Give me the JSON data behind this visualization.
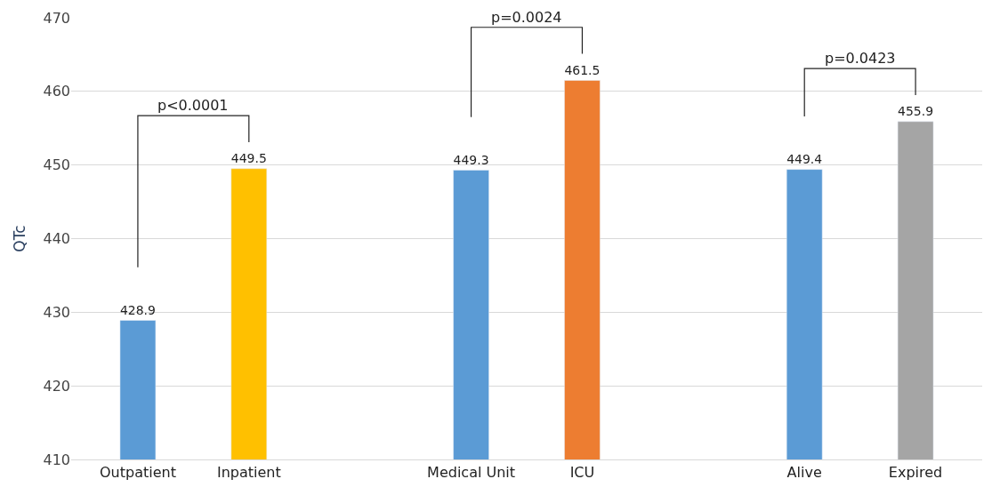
{
  "chart_data": {
    "type": "bar",
    "ylabel": "QTc",
    "categories": [
      "Outpatient",
      "Inpatient",
      null,
      "Medical Unit",
      "ICU",
      null,
      "Alive",
      "Expired"
    ],
    "values": [
      428.9,
      449.5,
      null,
      449.3,
      461.5,
      null,
      449.4,
      455.9
    ],
    "colors": [
      "#5b9bd5",
      "#ffc000",
      null,
      "#5b9bd5",
      "#ed7d31",
      null,
      "#5b9bd5",
      "#a5a5a5"
    ],
    "ylim": [
      410,
      470
    ],
    "yticks": [
      410,
      420,
      430,
      440,
      450,
      460,
      470
    ],
    "grid": "y",
    "data_labels": true,
    "annotations": [
      "p<0.0001",
      "p=0.0024",
      "p=0.0423"
    ]
  }
}
